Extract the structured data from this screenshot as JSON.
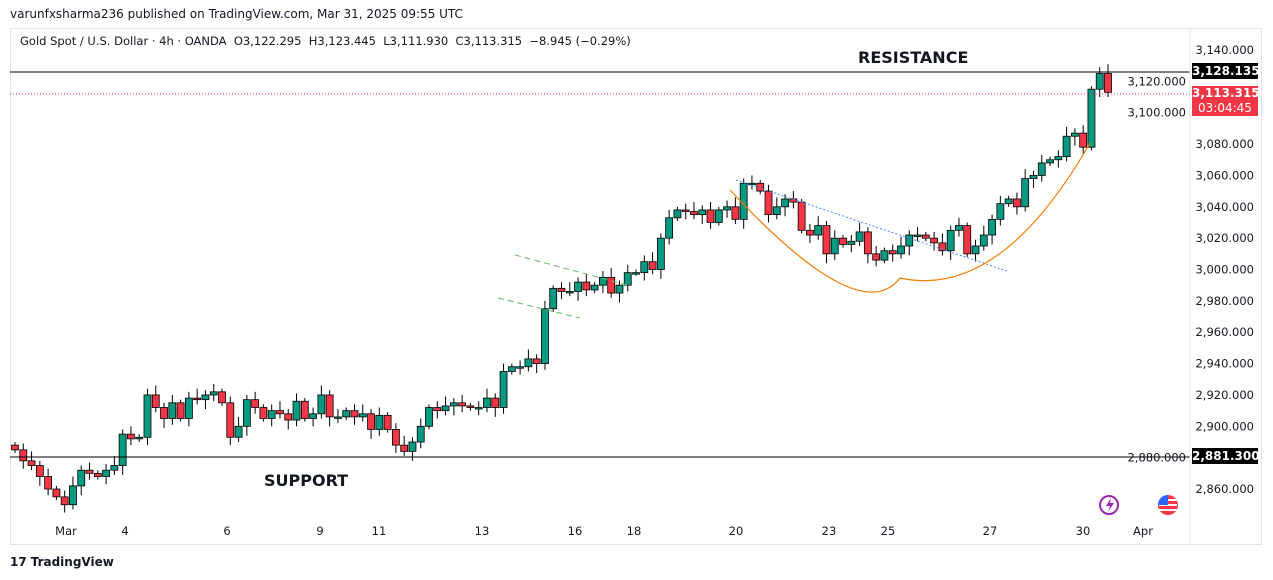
{
  "header": {
    "published": "varunfxsharma236 published on TradingView.com, Mar 31, 2025 09:55 UTC"
  },
  "legend": {
    "symbol": "Gold Spot / U.S. Dollar · 4h · OANDA",
    "open": "O3,122.295",
    "high": "H3,123.445",
    "low": "L3,111.930",
    "close": "C3,113.315",
    "change": "−8.945 (−0.29%)"
  },
  "annotations": {
    "resistance": "RESISTANCE",
    "support": "SUPPORT"
  },
  "price_tags": {
    "resistance": "3,128.135",
    "support": "2,881.300",
    "last_price": "3,113.315",
    "countdown": "03:04:45"
  },
  "footer": {
    "brand": "TradingView"
  },
  "colors": {
    "up": "#089981",
    "down": "#f23645",
    "last": "#f23645"
  },
  "chart_data": {
    "type": "candlestick",
    "title": "Gold Spot / U.S. Dollar · 4h · OANDA",
    "ylim": [
      2840,
      3150
    ],
    "y_ticks": [
      "3,140.000",
      "3,120.000",
      "3,100.000",
      "3,080.000",
      "3,060.000",
      "3,040.000",
      "3,020.000",
      "3,000.000",
      "2,980.000",
      "2,960.000",
      "2,940.000",
      "2,920.000",
      "2,900.000",
      "2,880.000",
      "2,860.000"
    ],
    "y_tick_values": [
      3140,
      3120,
      3100,
      3080,
      3060,
      3040,
      3020,
      3000,
      2980,
      2960,
      2940,
      2920,
      2900,
      2880,
      2860
    ],
    "x_ticks": [
      "Mar",
      "4",
      "6",
      "9",
      "11",
      "13",
      "16",
      "18",
      "20",
      "23",
      "25",
      "27",
      "30",
      "Apr"
    ],
    "horizontal_levels": [
      3128.135,
      2881.3
    ],
    "last_price": 3113.315,
    "closes": [
      2885,
      2878,
      2875,
      2868,
      2860,
      2855,
      2850,
      2862,
      2872,
      2870,
      2868,
      2872,
      2875,
      2895,
      2892,
      2893,
      2920,
      2912,
      2905,
      2915,
      2905,
      2918,
      2917,
      2920,
      2922,
      2915,
      2893,
      2900,
      2917,
      2912,
      2905,
      2910,
      2908,
      2904,
      2916,
      2905,
      2908,
      2920,
      2906,
      2906,
      2910,
      2906,
      2908,
      2898,
      2907,
      2898,
      2888,
      2884,
      2890,
      2900,
      2912,
      2910,
      2913,
      2915,
      2913,
      2912,
      2912,
      2918,
      2912,
      2935,
      2938,
      2938,
      2943,
      2940,
      2975,
      2988,
      2986,
      2986,
      2992,
      2987,
      2990,
      2995,
      2985,
      2990,
      2998,
      2998,
      3005,
      3000,
      3020,
      3033,
      3038,
      3037,
      3035,
      3038,
      3030,
      3038,
      3040,
      3032,
      3055,
      3055,
      3050,
      3035,
      3040,
      3045,
      3043,
      3025,
      3022,
      3028,
      3010,
      3020,
      3016,
      3018,
      3024,
      3010,
      3006,
      3012,
      3010,
      3015,
      3022,
      3022,
      3020,
      3017,
      3012,
      3025,
      3028,
      3010,
      3015,
      3022,
      3032,
      3042,
      3045,
      3040,
      3058,
      3060,
      3068,
      3070,
      3072,
      3085,
      3087,
      3078,
      3115,
      3125,
      3113
    ]
  }
}
